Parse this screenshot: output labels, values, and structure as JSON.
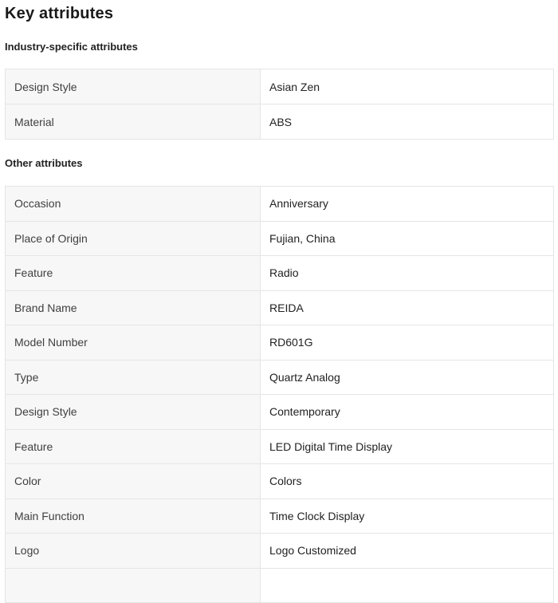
{
  "page": {
    "title": "Key attributes"
  },
  "sections": [
    {
      "heading": "Industry-specific attributes",
      "rows": [
        {
          "label": "Design Style",
          "value": "Asian Zen"
        },
        {
          "label": "Material",
          "value": "ABS"
        }
      ]
    },
    {
      "heading": "Other attributes",
      "rows": [
        {
          "label": "Occasion",
          "value": "Anniversary"
        },
        {
          "label": "Place of Origin",
          "value": "Fujian, China"
        },
        {
          "label": "Feature",
          "value": "Radio"
        },
        {
          "label": "Brand Name",
          "value": "REIDA"
        },
        {
          "label": "Model Number",
          "value": "RD601G"
        },
        {
          "label": "Type",
          "value": "Quartz Analog"
        },
        {
          "label": "Design Style",
          "value": "Contemporary"
        },
        {
          "label": "Feature",
          "value": "LED Digital Time Display"
        },
        {
          "label": "Color",
          "value": "Colors"
        },
        {
          "label": "Main Function",
          "value": "Time Clock Display"
        },
        {
          "label": "Logo",
          "value": "Logo Customized"
        }
      ]
    }
  ],
  "colors": {
    "label_cell_background": "#f7f7f7",
    "table_border": "#e5e5e5",
    "heading_text": "#1a1a1a",
    "body_text": "#222222"
  }
}
